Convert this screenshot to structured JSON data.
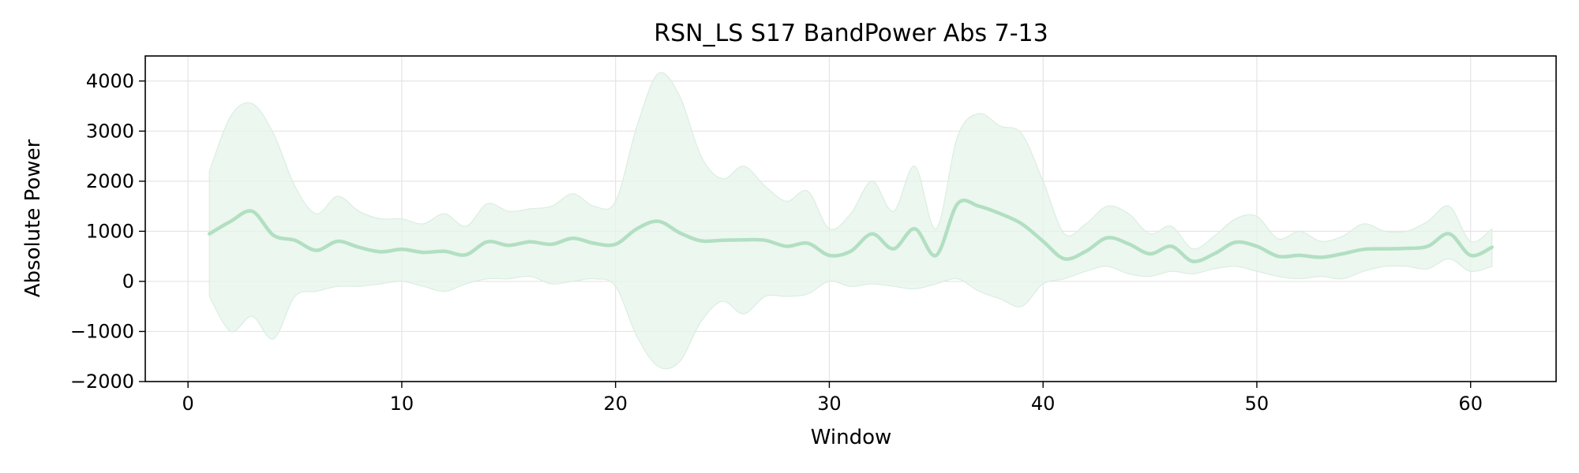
{
  "chart_data": {
    "type": "line",
    "title": "RSN_LS S17 BandPower Abs 7-13",
    "xlabel": "Window",
    "ylabel": "Absolute Power",
    "xlim": [
      -2,
      64
    ],
    "ylim": [
      -2000,
      4500
    ],
    "grid": true,
    "xticks": [
      0,
      10,
      20,
      30,
      40,
      50,
      60
    ],
    "xtick_labels": [
      "0",
      "10",
      "20",
      "30",
      "40",
      "50",
      "60"
    ],
    "yticks": [
      -2000,
      -1000,
      0,
      1000,
      2000,
      3000,
      4000
    ],
    "ytick_labels": [
      "−2000",
      "−1000",
      "0",
      "1000",
      "2000",
      "3000",
      "4000"
    ],
    "colors": {
      "line": "#b2dfc2",
      "band": "#e6f4ea"
    },
    "series": [
      {
        "x": [
          1,
          2,
          3,
          4,
          5,
          6,
          7,
          8,
          9,
          10,
          11,
          12,
          13,
          14,
          15,
          16,
          17,
          18,
          19,
          20,
          21,
          22,
          23,
          24,
          25,
          26,
          27,
          28,
          29,
          30,
          31,
          32,
          33,
          34,
          35,
          36,
          37,
          38,
          39,
          40,
          41,
          42,
          43,
          44,
          45,
          46,
          47,
          48,
          49,
          50,
          51,
          52,
          53,
          54,
          55,
          56,
          57,
          58,
          59,
          60,
          61
        ],
        "mean": [
          950,
          1200,
          1400,
          920,
          820,
          620,
          800,
          680,
          590,
          640,
          580,
          600,
          530,
          790,
          720,
          790,
          740,
          860,
          760,
          740,
          1050,
          1200,
          970,
          810,
          820,
          830,
          820,
          700,
          760,
          520,
          600,
          950,
          650,
          1050,
          520,
          1550,
          1500,
          1350,
          1150,
          800,
          450,
          600,
          870,
          750,
          550,
          700,
          400,
          550,
          780,
          700,
          500,
          520,
          480,
          550,
          640,
          650,
          660,
          700,
          950,
          520,
          680
        ],
        "upper": [
          2200,
          3300,
          3550,
          2950,
          1900,
          1350,
          1700,
          1400,
          1250,
          1250,
          1150,
          1350,
          1100,
          1550,
          1400,
          1450,
          1500,
          1750,
          1500,
          1600,
          3100,
          4150,
          3700,
          2500,
          2050,
          2300,
          1900,
          1600,
          1800,
          1050,
          1350,
          2000,
          1400,
          2300,
          1050,
          2900,
          3350,
          3100,
          2950,
          2000,
          950,
          1150,
          1500,
          1350,
          950,
          1100,
          650,
          900,
          1250,
          1300,
          850,
          1000,
          800,
          900,
          1150,
          1000,
          1000,
          1200,
          1500,
          800,
          1050
        ],
        "lower": [
          -300,
          -1000,
          -700,
          -1150,
          -300,
          -200,
          -100,
          -100,
          -50,
          0,
          -100,
          -200,
          -50,
          50,
          50,
          100,
          -50,
          0,
          50,
          -100,
          -1100,
          -1700,
          -1600,
          -800,
          -400,
          -650,
          -300,
          -300,
          -250,
          0,
          -100,
          -50,
          -100,
          -150,
          -50,
          50,
          -200,
          -350,
          -500,
          -50,
          50,
          200,
          300,
          150,
          100,
          200,
          150,
          250,
          300,
          200,
          100,
          50,
          100,
          50,
          200,
          300,
          300,
          250,
          450,
          200,
          300
        ]
      }
    ]
  }
}
